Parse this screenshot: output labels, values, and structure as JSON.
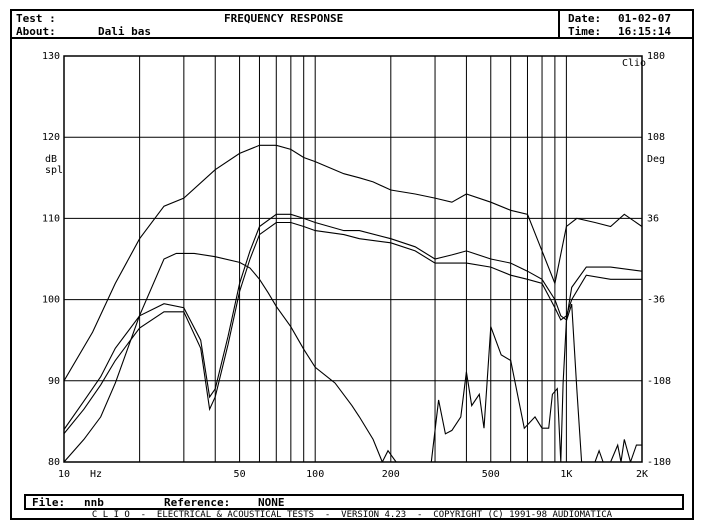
{
  "header": {
    "test_label": "Test :",
    "about_label": "About:",
    "about_value": "Dali bas",
    "title": "FREQUENCY RESPONSE",
    "date_label": "Date:",
    "date_value": "01-02-07",
    "time_label": "Time:",
    "time_value": "16:15:14"
  },
  "footer": {
    "file_label": "File:",
    "file_value": "nnb",
    "reference_label": "Reference:",
    "reference_value": "NONE",
    "credits": "C L I O  -  ELECTRICAL & ACOUSTICAL TESTS  -  VERSION 4.23  -  COPYRIGHT (C) 1991-98 AUDIOMATICA"
  },
  "colors": {
    "ink": "#000000",
    "paper": "#ffffff"
  },
  "chart_data": {
    "type": "line",
    "xscale": "log",
    "xlim": [
      10,
      2000
    ],
    "ylim": [
      80,
      130
    ],
    "y2lim": [
      -180,
      180
    ],
    "grid": true,
    "left_axis_unit": "dB\nspl",
    "right_axis_unit": "Deg",
    "x_unit": "Hz",
    "corner_label": "Clio",
    "x_ticks": [
      {
        "value": 10,
        "label": "10"
      },
      {
        "value": 50,
        "label": "50"
      },
      {
        "value": 100,
        "label": "100"
      },
      {
        "value": 200,
        "label": "200"
      },
      {
        "value": 500,
        "label": "500"
      },
      {
        "value": 1000,
        "label": "1K"
      },
      {
        "value": 2000,
        "label": "2K"
      }
    ],
    "y_ticks": [
      {
        "value": 80,
        "label": "80"
      },
      {
        "value": 90,
        "label": "90"
      },
      {
        "value": 100,
        "label": "100"
      },
      {
        "value": 110,
        "label": "110"
      },
      {
        "value": 120,
        "label": "120"
      },
      {
        "value": 130,
        "label": "130"
      }
    ],
    "y2_ticks": [
      {
        "value": -180,
        "label": "-180"
      },
      {
        "value": -108,
        "label": "-108"
      },
      {
        "value": -36,
        "label": "-36"
      },
      {
        "value": 36,
        "label": "36"
      },
      {
        "value": 108,
        "label": "108"
      },
      {
        "value": 180,
        "label": "180"
      }
    ],
    "series": [
      {
        "x": [
          10,
          13,
          16,
          20,
          25,
          30,
          40,
          50,
          60,
          70,
          80,
          90,
          100,
          130,
          150,
          170,
          200,
          250,
          300,
          350,
          400,
          500,
          600,
          700,
          800,
          900,
          1000,
          1100,
          1300,
          1500,
          1700,
          2000
        ],
        "y": [
          90,
          96,
          102,
          107.5,
          111.5,
          112.5,
          116,
          118,
          119,
          119,
          118.5,
          117.5,
          117,
          115.5,
          115,
          114.5,
          113.5,
          113,
          112.5,
          112,
          113,
          112,
          111,
          110.5,
          106,
          102,
          109,
          110,
          109.5,
          109,
          110.5,
          109
        ]
      },
      {
        "x": [
          10,
          12,
          14,
          16,
          20,
          25,
          30,
          35,
          38,
          40,
          45,
          50,
          55,
          60,
          70,
          80,
          90,
          100,
          130,
          150,
          200,
          250,
          300,
          350,
          400,
          500,
          600,
          700,
          800,
          900,
          950,
          1000,
          1050,
          1200,
          1500,
          2000
        ],
        "y": [
          84,
          87.5,
          90.5,
          94,
          98,
          99.5,
          99,
          95,
          88,
          89,
          95.5,
          102,
          106,
          109,
          110.5,
          110.5,
          110,
          109.5,
          108.5,
          108.5,
          107.5,
          106.5,
          105,
          105.5,
          106,
          105,
          104.5,
          103.5,
          102.5,
          100,
          98,
          97.5,
          101.5,
          104,
          104,
          103.5
        ]
      },
      {
        "x": [
          10,
          12,
          14,
          16,
          20,
          25,
          30,
          35,
          38,
          40,
          45,
          50,
          55,
          60,
          70,
          80,
          90,
          100,
          130,
          150,
          200,
          250,
          300,
          350,
          400,
          500,
          600,
          700,
          800,
          900,
          950,
          1000,
          1050,
          1200,
          1500,
          2000
        ],
        "y": [
          83.5,
          86.5,
          89.5,
          92.5,
          96.5,
          98.5,
          98.5,
          94,
          86.5,
          88,
          94.5,
          101,
          105,
          108,
          109.5,
          109.5,
          109,
          108.5,
          108,
          107.5,
          107,
          106,
          104.5,
          104.5,
          104.5,
          104,
          103,
          102.5,
          102,
          99,
          97.5,
          98,
          100,
          103,
          102.5,
          102.5
        ]
      },
      {
        "x": [
          10,
          12,
          14,
          16,
          20,
          25,
          28,
          33,
          40,
          50,
          55,
          60,
          65,
          70,
          80,
          90,
          100,
          120,
          140,
          150,
          170,
          185,
          195,
          210,
          230,
          250,
          290,
          310,
          330,
          350,
          380,
          400,
          420,
          450,
          470,
          500,
          550,
          600,
          680,
          750,
          800,
          850,
          880,
          920,
          950,
          970,
          1000,
          1050,
          1100,
          1150,
          1200,
          1300,
          1350,
          1400,
          1500,
          1600,
          1650,
          1700,
          1800,
          1900,
          2000
        ],
        "y": [
          -180,
          -160,
          -140,
          -110,
          -50,
          0,
          5,
          5,
          2,
          -3,
          -8,
          -18,
          -30,
          -42,
          -60,
          -80,
          -96,
          -110,
          -130,
          -140,
          -160,
          -180,
          -170,
          -180,
          -180,
          -180,
          -180,
          -125,
          -155,
          -152,
          -140,
          -100,
          -130,
          -120,
          -150,
          -60,
          -85,
          -90,
          -150,
          -140,
          -150,
          -150,
          -120,
          -115,
          -180,
          -110,
          -55,
          -40,
          -115,
          -180,
          -180,
          -180,
          -170,
          -180,
          -180,
          -165,
          -180,
          -160,
          -180,
          -165,
          -165
        ]
      }
    ]
  }
}
